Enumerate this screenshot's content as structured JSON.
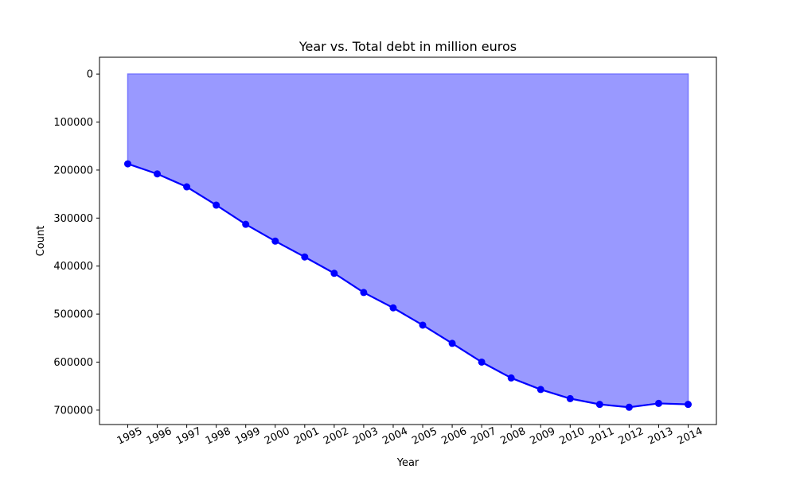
{
  "chart_data": {
    "type": "area",
    "title": "Year vs. Total debt in million euros",
    "xlabel": "Year",
    "ylabel": "Count",
    "categories": [
      "1995",
      "1996",
      "1997",
      "1998",
      "1999",
      "2000",
      "2001",
      "2002",
      "2003",
      "2004",
      "2005",
      "2006",
      "2007",
      "2008",
      "2009",
      "2010",
      "2011",
      "2012",
      "2013",
      "2014"
    ],
    "series": [
      {
        "values": [
          187000,
          208000,
          235000,
          273000,
          313000,
          348000,
          381000,
          415000,
          455000,
          487000,
          523000,
          561000,
          600000,
          633000,
          657000,
          676000,
          688000,
          694000,
          686000,
          688000
        ]
      }
    ],
    "ylim": [
      730000,
      -35000
    ],
    "y_inverted": true,
    "yticks": [
      0,
      100000,
      200000,
      300000,
      400000,
      500000,
      600000,
      700000
    ],
    "ytick_labels": [
      "0",
      "100000",
      "200000",
      "300000",
      "400000",
      "500000",
      "600000",
      "700000"
    ],
    "grid": false,
    "legend": "none",
    "colors": {
      "line": "#0000ff",
      "marker": "#0000ff",
      "fill": "#9999ff",
      "fill_edge": "#7777ff"
    }
  }
}
